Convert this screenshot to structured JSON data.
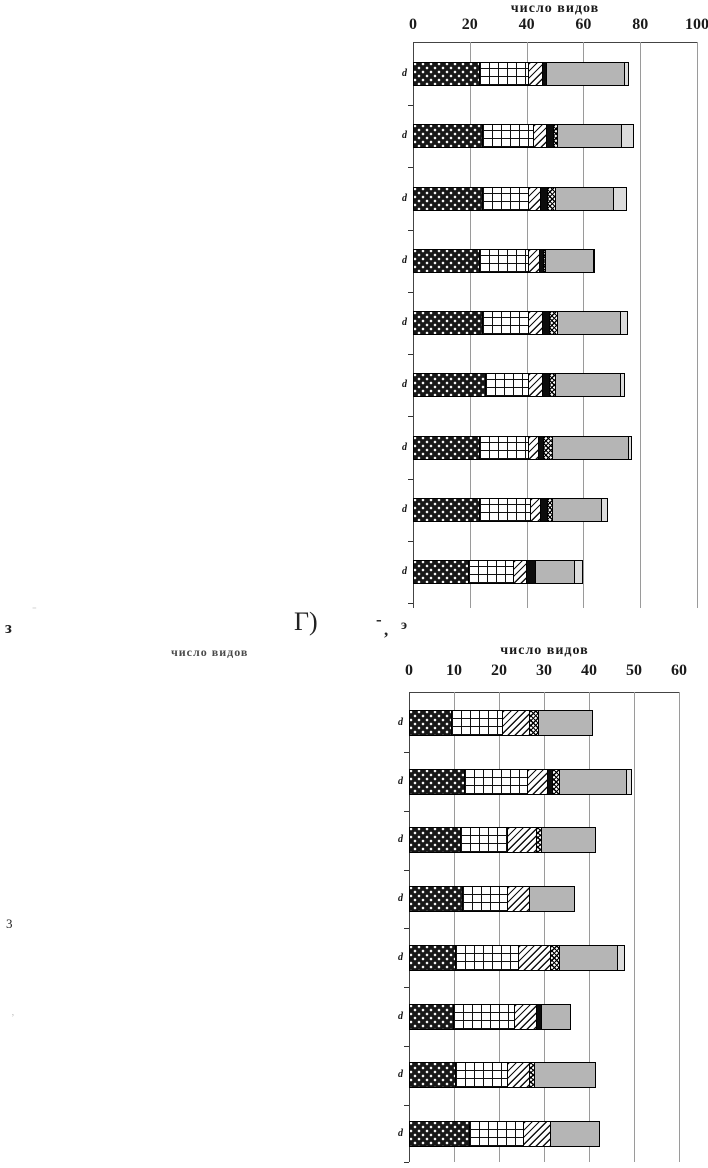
{
  "chart_data": [
    {
      "type": "bar",
      "orientation": "horizontal-stacked",
      "title": "число видов",
      "xlabel": "число видов",
      "ylabel": "",
      "xlim": [
        0,
        100
      ],
      "x_ticks": [
        0,
        20,
        40,
        60,
        80,
        100
      ],
      "grid": true,
      "legend": "none",
      "categories": [
        "d",
        "d",
        "d",
        "d",
        "d",
        "d",
        "d",
        "d",
        "d"
      ],
      "series": [
        {
          "name": "dotted-black",
          "values": [
            23,
            24,
            24,
            23,
            24,
            25,
            23,
            23,
            19
          ]
        },
        {
          "name": "open-grid",
          "values": [
            17,
            18,
            16,
            17,
            16,
            15,
            17,
            18,
            16
          ]
        },
        {
          "name": "diagonal-hatch",
          "values": [
            5,
            4.5,
            4.5,
            4,
            5,
            5,
            3.5,
            3.5,
            4.5
          ]
        },
        {
          "name": "solid-black",
          "values": [
            1.5,
            2.5,
            2.5,
            1.5,
            2.5,
            2.5,
            2,
            2.5,
            3
          ]
        },
        {
          "name": "cross-hatch",
          "values": [
            0,
            1.5,
            2.5,
            0.5,
            3,
            2,
            3,
            1.5,
            0
          ]
        },
        {
          "name": "gray",
          "values": [
            27.5,
            22.5,
            20.5,
            17,
            22,
            23,
            27,
            17.5,
            14
          ]
        },
        {
          "name": "light-gray-cap",
          "values": [
            1.5,
            4,
            4.5,
            0.5,
            2.5,
            1.5,
            1,
            2,
            2.5
          ]
        }
      ]
    },
    {
      "type": "bar",
      "orientation": "horizontal-stacked",
      "title": "число видов",
      "xlabel": "число видов",
      "ylabel": "",
      "xlim": [
        0,
        60
      ],
      "x_ticks": [
        0,
        10,
        20,
        30,
        40,
        50,
        60
      ],
      "grid": true,
      "legend": "none",
      "categories": [
        "d",
        "d",
        "d",
        "d",
        "d",
        "d",
        "d",
        "d"
      ],
      "series": [
        {
          "name": "dotted-black",
          "values": [
            9,
            12,
            11,
            11.5,
            10,
            9.5,
            10,
            13
          ]
        },
        {
          "name": "open-grid",
          "values": [
            11.5,
            14,
            10.5,
            10,
            14,
            13.5,
            11.5,
            12
          ]
        },
        {
          "name": "diagonal-hatch",
          "values": [
            6,
            4.5,
            6.5,
            5,
            7,
            5,
            5,
            6
          ]
        },
        {
          "name": "solid-black",
          "values": [
            0,
            1,
            0,
            0,
            0,
            1,
            0,
            0
          ]
        },
        {
          "name": "cross-hatch",
          "values": [
            2,
            1.5,
            1,
            0,
            2,
            0,
            1,
            0
          ]
        },
        {
          "name": "gray",
          "values": [
            12,
            15,
            12,
            10,
            13,
            6.5,
            13.5,
            11
          ]
        },
        {
          "name": "light-gray-cap",
          "values": [
            0,
            1,
            0,
            0,
            1.5,
            0,
            0,
            0
          ]
        }
      ]
    }
  ],
  "fragments": {
    "left_letter": "з",
    "smudge": "-",
    "gamma_bracket": "Г)",
    "dash": "-",
    "comma": ",",
    "e_mark": "э",
    "three": "3",
    "apostrophe": "’",
    "cropped_chart_title": "число видов"
  },
  "colors": {
    "gray_segment": "#b5b5b5",
    "light_cap_segment": "#dcdcdc",
    "gridline": "#9a9a9a",
    "text": "#1a1a1a"
  }
}
